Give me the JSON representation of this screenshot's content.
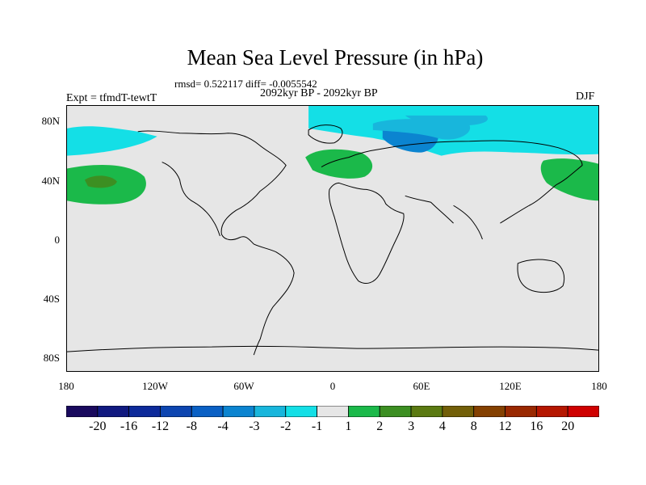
{
  "title": "Mean Sea Level Pressure (in hPa)",
  "stats": "rmsd= 0.522117 diff= -0.0055542",
  "period": "2092kyr BP - 2092kyr BP",
  "experiment": "Expt = tfmdT-tewtT",
  "season": "DJF",
  "lat_labels": [
    "80N",
    "40N",
    "0",
    "40S",
    "80S"
  ],
  "lon_labels": [
    "180",
    "120W",
    "60W",
    "0",
    "60E",
    "120E",
    "180"
  ],
  "colorbar": {
    "colors": [
      "#1a0a5e",
      "#111a80",
      "#0d2a9a",
      "#0d45b0",
      "#0a60c4",
      "#0b84d0",
      "#18b6dc",
      "#14dfe6",
      "#e6e6e6",
      "#1bb94a",
      "#3c8f22",
      "#5b7a12",
      "#725f08",
      "#844000",
      "#992800",
      "#b51600",
      "#cf0000"
    ],
    "labels": [
      "-20",
      "-16",
      "-12",
      "-8",
      "-4",
      "-3",
      "-2",
      "-1",
      "1",
      "2",
      "3",
      "4",
      "8",
      "12",
      "16",
      "20"
    ]
  }
}
